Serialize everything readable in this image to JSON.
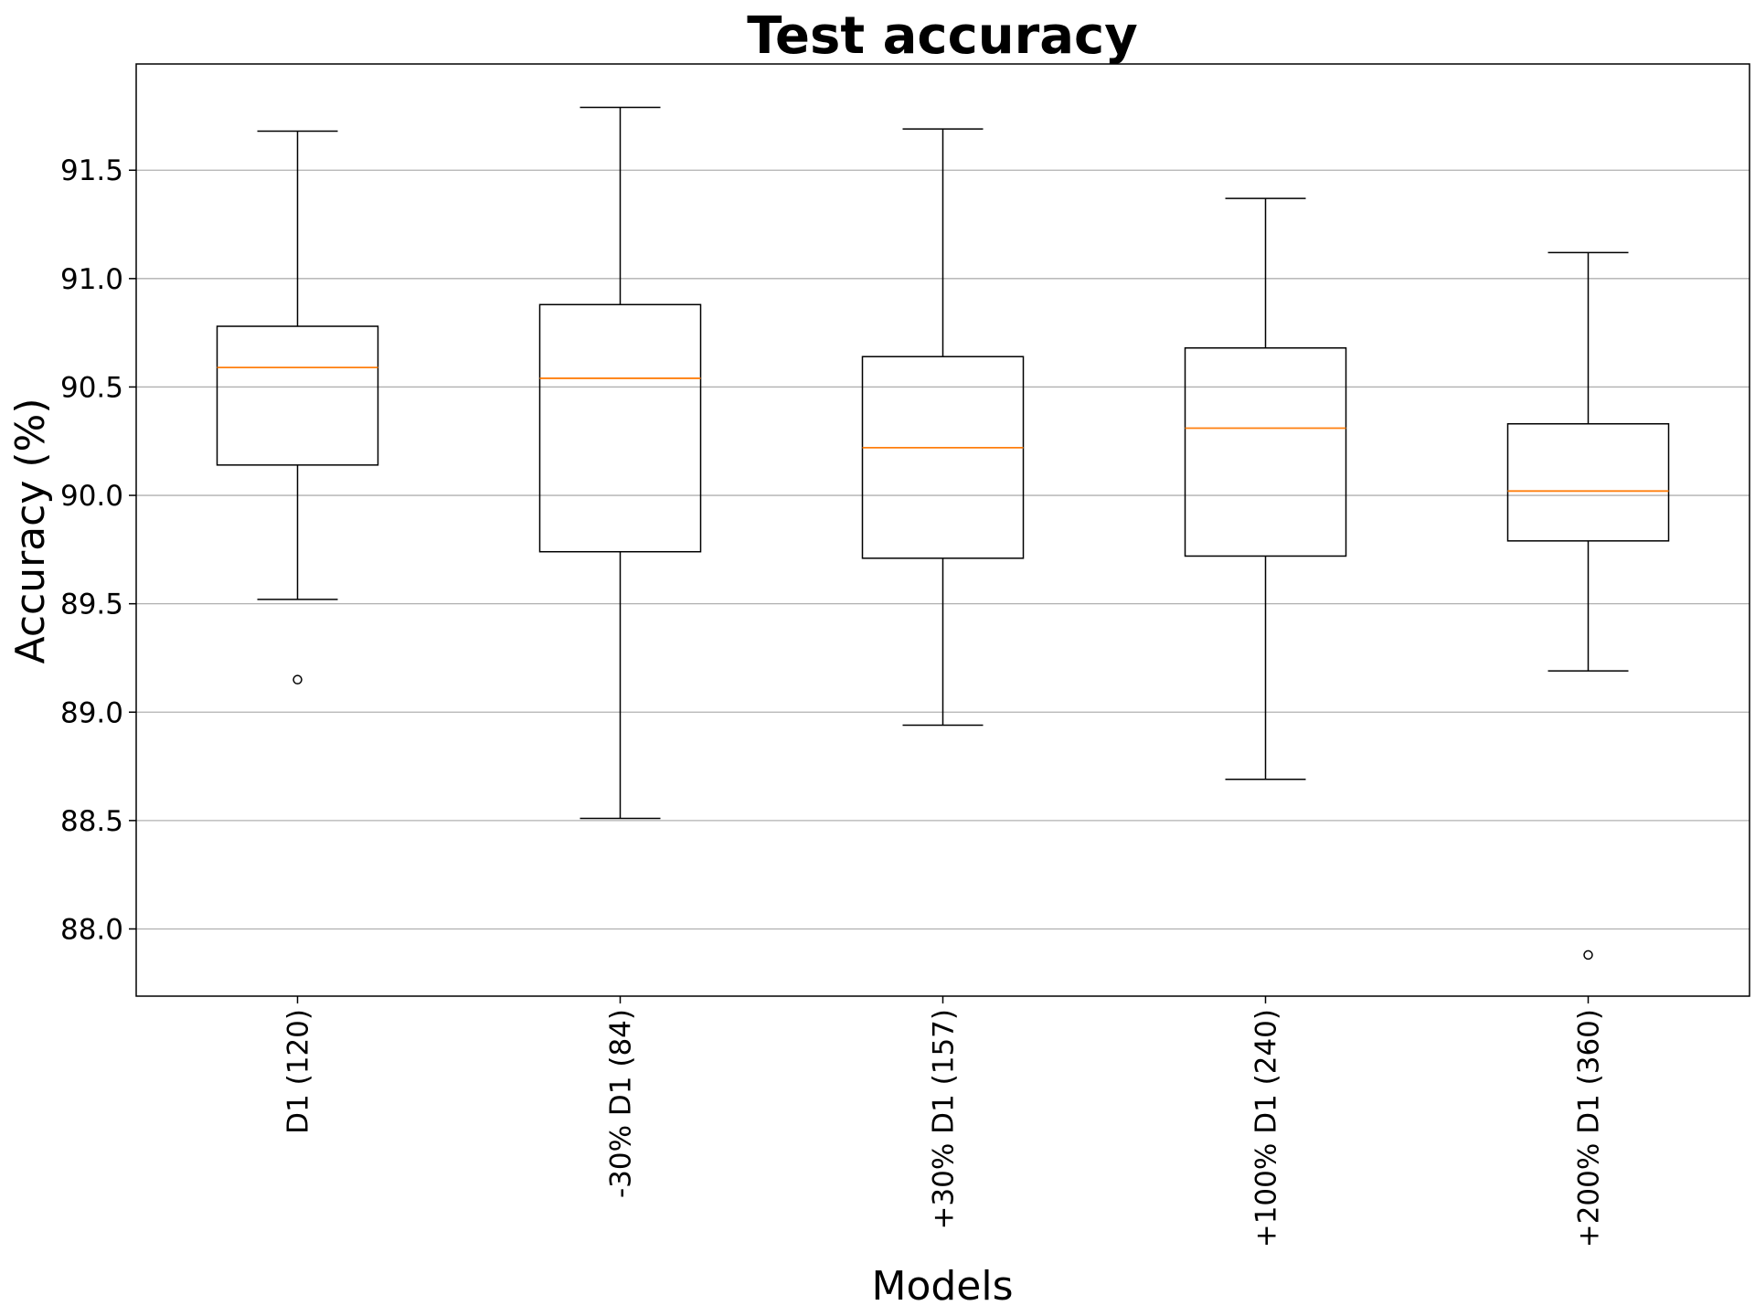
{
  "chart_data": {
    "type": "box",
    "title": "Test accuracy",
    "xlabel": "Models",
    "ylabel": "Accuracy (%)",
    "ylim": [
      87.69,
      91.99
    ],
    "yticks": [
      "88.0",
      "88.5",
      "89.0",
      "89.5",
      "90.0",
      "90.5",
      "91.0",
      "91.5"
    ],
    "ytick_values": [
      88.0,
      88.5,
      89.0,
      89.5,
      90.0,
      90.5,
      91.0,
      91.5
    ],
    "grid": "horizontal",
    "categories": [
      "D1 (120)",
      "-30% D1 (84)",
      "+30% D1 (157)",
      "+100% D1 (240)",
      "+200% D1 (360)"
    ],
    "boxes": [
      {
        "category": "D1 (120)",
        "whisker_low": 89.52,
        "q1": 90.14,
        "median": 90.59,
        "q3": 90.78,
        "whisker_high": 91.68,
        "outliers": [
          89.15
        ]
      },
      {
        "category": "-30% D1 (84)",
        "whisker_low": 88.51,
        "q1": 89.74,
        "median": 90.54,
        "q3": 90.88,
        "whisker_high": 91.79,
        "outliers": []
      },
      {
        "category": "+30% D1 (157)",
        "whisker_low": 88.94,
        "q1": 89.71,
        "median": 90.22,
        "q3": 90.64,
        "whisker_high": 91.69,
        "outliers": []
      },
      {
        "category": "+100% D1 (240)",
        "whisker_low": 88.69,
        "q1": 89.72,
        "median": 90.31,
        "q3": 90.68,
        "whisker_high": 91.37,
        "outliers": []
      },
      {
        "category": "+200% D1 (360)",
        "whisker_low": 89.19,
        "q1": 89.79,
        "median": 90.02,
        "q3": 90.33,
        "whisker_high": 91.12,
        "outliers": [
          87.88
        ]
      }
    ],
    "colors": {
      "box": "#000000",
      "median": "#ff7f0e",
      "grid": "#b0b0b0",
      "frame": "#000000"
    }
  }
}
